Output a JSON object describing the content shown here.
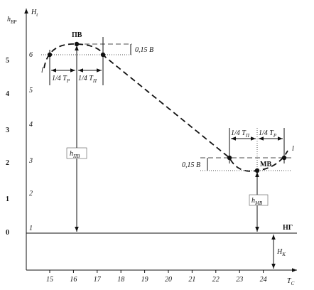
{
  "axes": {
    "y_left_label": {
      "main": "h",
      "sub": "ВР"
    },
    "y_right_label": {
      "main": "H",
      "sub": "t"
    },
    "x_label": {
      "main": "T",
      "sub": "C"
    },
    "left_scale": [
      "0",
      "1",
      "2",
      "3",
      "4",
      "5"
    ],
    "right_scale": [
      "1",
      "2",
      "3",
      "4",
      "5",
      "6"
    ],
    "x_ticks": [
      "15",
      "16",
      "17",
      "18",
      "19",
      "20",
      "21",
      "22",
      "23",
      "24"
    ]
  },
  "annotations": {
    "high_water": "ПВ",
    "low_water": "МВ",
    "datum": "НГ",
    "delta_high": "0,15 В",
    "delta_low": "0,15 В",
    "quarter_high_left": {
      "main": "1/4 T",
      "sub": "P"
    },
    "quarter_high_right": {
      "main": "1/4 T",
      "sub": "П"
    },
    "quarter_low_left": {
      "main": "1/4 T",
      "sub": "П"
    },
    "quarter_low_right": {
      "main": "1/4 T",
      "sub": "P"
    },
    "h_high": {
      "main": "h",
      "sub": "ПВ"
    },
    "h_low": {
      "main": "h",
      "sub": "МВ"
    },
    "h_k": {
      "main": "H",
      "sub": "К"
    },
    "mark_left": "l",
    "mark_right": "l"
  }
}
